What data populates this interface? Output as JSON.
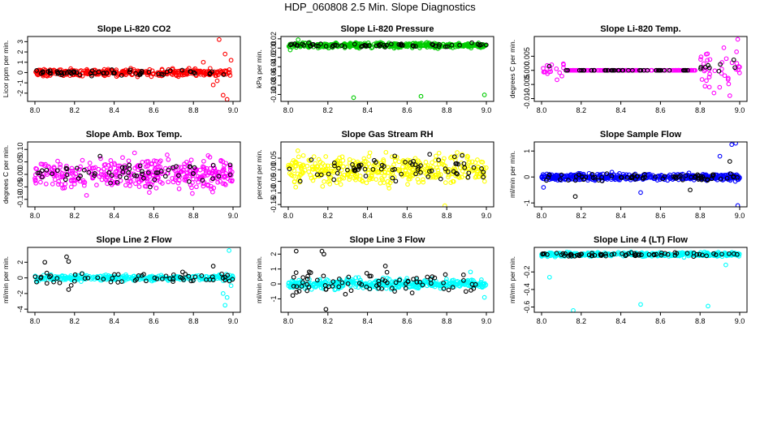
{
  "title": "HDP_060808  2.5 Min. Slope Diagnostics",
  "colors": {
    "co2": "#ff0000",
    "pressure": "#00cc00",
    "magenta": "#ff00ff",
    "yellow": "#ffff00",
    "blue": "#0000ff",
    "cyan": "#00ffff",
    "black": "#000000"
  },
  "chart_data": [
    {
      "type": "scatter",
      "title": "Slope Li-820 CO2",
      "ylabel": "Licor ppm per min.",
      "xlim": [
        8.0,
        9.0
      ],
      "ylim": [
        -2.8,
        3.5
      ],
      "yticks": [
        -2,
        -1,
        0,
        1,
        2,
        3
      ],
      "xticks": [
        8.0,
        8.2,
        8.4,
        8.6,
        8.8,
        9.0
      ],
      "color_key": "co2",
      "series": [
        {
          "name": "all",
          "color_key": "co2",
          "n": 340,
          "spread": 0.32,
          "events": [
            {
              "x": 8.85,
              "y": 1.0
            },
            {
              "x": 8.9,
              "y": -1.2
            },
            {
              "x": 8.93,
              "y": 3.2
            },
            {
              "x": 8.95,
              "y": -2.2
            },
            {
              "x": 8.97,
              "y": -2.6
            },
            {
              "x": 8.99,
              "y": 1.2
            },
            {
              "x": 8.96,
              "y": 1.8
            },
            {
              "x": 8.92,
              "y": -0.8
            }
          ]
        },
        {
          "name": "subset",
          "color_key": "black",
          "n": 60,
          "spread": 0.25,
          "events": []
        }
      ]
    },
    {
      "type": "scatter",
      "title": "Slope Li-820 Pressure",
      "ylabel": "kPa per min.",
      "xlim": [
        8.0,
        9.0
      ],
      "ylim": [
        -0.115,
        0.025
      ],
      "yticks": [
        -0.1,
        -0.08,
        -0.06,
        -0.04,
        -0.02,
        0.0,
        0.02
      ],
      "xticks": [
        8.0,
        8.2,
        8.4,
        8.6,
        8.8,
        9.0
      ],
      "center": 0.006,
      "color_key": "pressure",
      "series": [
        {
          "name": "all",
          "color_key": "pressure",
          "n": 420,
          "spread": 0.005,
          "events": [
            {
              "x": 8.33,
              "y": -0.107
            },
            {
              "x": 8.67,
              "y": -0.104
            },
            {
              "x": 8.99,
              "y": -0.101
            },
            {
              "x": 8.01,
              "y": -0.004
            },
            {
              "x": 8.05,
              "y": 0.018
            }
          ]
        },
        {
          "name": "subset",
          "color_key": "black",
          "n": 60,
          "spread": 0.004,
          "events": []
        }
      ]
    },
    {
      "type": "scatter",
      "title": "Slope Li-820 Temp.",
      "ylabel": "degrees C per min.",
      "xlim": [
        8.0,
        9.0
      ],
      "ylim": [
        -0.011,
        0.012
      ],
      "yticks": [
        -0.01,
        -0.005,
        0.0,
        0.005
      ],
      "xticks": [
        8.0,
        8.2,
        8.4,
        8.6,
        8.8,
        9.0
      ],
      "color_key": "magenta",
      "series": [
        {
          "name": "all",
          "color_key": "magenta",
          "n": 200,
          "spread": 0.0,
          "noisy_ranges": [
            [
              8.0,
              8.12,
              0.003
            ],
            [
              8.78,
              9.0,
              0.006
            ]
          ],
          "events": [
            {
              "x": 8.99,
              "y": 0.011
            },
            {
              "x": 8.87,
              "y": -0.008
            },
            {
              "x": 8.92,
              "y": 0.008
            },
            {
              "x": 8.95,
              "y": -0.009
            }
          ]
        },
        {
          "name": "subset",
          "color_key": "black",
          "n": 50,
          "spread": 0.0,
          "noisy_ranges": [
            [
              8.0,
              8.12,
              0.002
            ],
            [
              8.78,
              9.0,
              0.003
            ]
          ],
          "events": []
        }
      ]
    },
    {
      "type": "scatter",
      "title": "Slope Amb. Box Temp.",
      "ylabel": "degrees C per min.",
      "xlim": [
        8.0,
        9.0
      ],
      "ylim": [
        -0.13,
        0.13
      ],
      "yticks": [
        -0.1,
        -0.05,
        0.0,
        0.05,
        0.1
      ],
      "xticks": [
        8.0,
        8.2,
        8.4,
        8.6,
        8.8,
        9.0
      ],
      "color_key": "magenta",
      "series": [
        {
          "name": "all",
          "color_key": "magenta",
          "n": 380,
          "spread": 0.055,
          "events": []
        },
        {
          "name": "subset",
          "color_key": "black",
          "n": 60,
          "spread": 0.05,
          "events": []
        }
      ]
    },
    {
      "type": "scatter",
      "title": "Slope Gas Stream RH",
      "ylabel": "percent per min.",
      "xlim": [
        8.0,
        9.0
      ],
      "ylim": [
        -0.16,
        0.12
      ],
      "yticks": [
        -0.15,
        -0.1,
        -0.05,
        0.0,
        0.05
      ],
      "xticks": [
        8.0,
        8.2,
        8.4,
        8.6,
        8.8,
        9.0
      ],
      "color_key": "yellow",
      "series": [
        {
          "name": "all",
          "color_key": "yellow",
          "n": 420,
          "spread": 0.055,
          "events": [
            {
              "x": 8.79,
              "y": -0.155
            }
          ]
        },
        {
          "name": "subset",
          "color_key": "black",
          "n": 70,
          "spread": 0.05,
          "events": []
        }
      ]
    },
    {
      "type": "scatter",
      "title": "Slope Sample Flow",
      "ylabel": "ml/min per min.",
      "xlim": [
        8.0,
        9.0
      ],
      "ylim": [
        -1.15,
        1.35
      ],
      "yticks": [
        -1.0,
        0.0,
        1.0
      ],
      "xticks": [
        8.0,
        8.2,
        8.4,
        8.6,
        8.8,
        9.0
      ],
      "color_key": "blue",
      "series": [
        {
          "name": "all",
          "color_key": "blue",
          "n": 420,
          "spread": 0.12,
          "events": [
            {
              "x": 8.96,
              "y": 1.25
            },
            {
              "x": 8.98,
              "y": 1.3
            },
            {
              "x": 8.99,
              "y": -1.1
            },
            {
              "x": 8.5,
              "y": -0.6
            },
            {
              "x": 8.9,
              "y": 0.8
            },
            {
              "x": 8.01,
              "y": -0.4
            }
          ]
        },
        {
          "name": "subset",
          "color_key": "black",
          "n": 70,
          "spread": 0.12,
          "events": [
            {
              "x": 8.17,
              "y": -0.75
            },
            {
              "x": 8.75,
              "y": -0.5
            },
            {
              "x": 8.95,
              "y": 0.6
            }
          ]
        }
      ]
    },
    {
      "type": "scatter",
      "title": "Slope Line 2 Flow",
      "ylabel": "ml/min per min.",
      "xlim": [
        8.0,
        9.0
      ],
      "ylim": [
        -4.4,
        3.9
      ],
      "yticks": [
        -4,
        -2,
        0,
        2
      ],
      "xticks": [
        8.0,
        8.2,
        8.4,
        8.6,
        8.8,
        9.0
      ],
      "color_key": "cyan",
      "series": [
        {
          "name": "all",
          "color_key": "cyan",
          "n": 320,
          "spread": 0.35,
          "events": [
            {
              "x": 8.96,
              "y": -3.5
            },
            {
              "x": 8.97,
              "y": -2.5
            },
            {
              "x": 8.98,
              "y": 3.5
            },
            {
              "x": 8.99,
              "y": -1.0
            },
            {
              "x": 8.95,
              "y": -2.0
            }
          ]
        },
        {
          "name": "subset",
          "color_key": "black",
          "n": 60,
          "spread": 0.7,
          "events": [
            {
              "x": 8.05,
              "y": 2.0
            },
            {
              "x": 8.16,
              "y": 2.7
            },
            {
              "x": 8.17,
              "y": 2.1
            },
            {
              "x": 8.17,
              "y": -1.5
            },
            {
              "x": 8.9,
              "y": 1.5
            }
          ]
        }
      ]
    },
    {
      "type": "scatter",
      "title": "Slope Line 3 Flow",
      "ylabel": "ml/min per min.",
      "xlim": [
        8.0,
        9.0
      ],
      "ylim": [
        -1.9,
        2.45
      ],
      "yticks": [
        -1,
        0,
        1,
        2
      ],
      "xticks": [
        8.0,
        8.2,
        8.4,
        8.6,
        8.8,
        9.0
      ],
      "color_key": "cyan",
      "series": [
        {
          "name": "all",
          "color_key": "cyan",
          "n": 400,
          "spread": 0.3,
          "events": [
            {
              "x": 8.92,
              "y": 0.8
            },
            {
              "x": 8.99,
              "y": -0.9
            }
          ]
        },
        {
          "name": "subset",
          "color_key": "black",
          "n": 80,
          "spread": 0.75,
          "events": [
            {
              "x": 8.04,
              "y": 2.2
            },
            {
              "x": 8.17,
              "y": 2.2
            },
            {
              "x": 8.18,
              "y": 2.0
            },
            {
              "x": 8.19,
              "y": -1.7
            },
            {
              "x": 8.49,
              "y": 1.2
            }
          ]
        }
      ]
    },
    {
      "type": "scatter",
      "title": "Slope Line 4 (LT) Flow",
      "ylabel": "ml/min per min.",
      "xlim": [
        8.0,
        9.0
      ],
      "ylim": [
        -0.66,
        0.08
      ],
      "yticks": [
        -0.6,
        -0.4,
        -0.2
      ],
      "xticks": [
        8.0,
        8.2,
        8.4,
        8.6,
        8.8,
        9.0
      ],
      "center": 0.0,
      "color_key": "cyan",
      "series": [
        {
          "name": "all",
          "color_key": "cyan",
          "n": 380,
          "spread": 0.022,
          "events": [
            {
              "x": 8.04,
              "y": -0.26
            },
            {
              "x": 8.16,
              "y": -0.64
            },
            {
              "x": 8.5,
              "y": -0.57
            },
            {
              "x": 8.84,
              "y": -0.59
            },
            {
              "x": 8.93,
              "y": -0.12
            }
          ]
        },
        {
          "name": "subset",
          "color_key": "black",
          "n": 70,
          "spread": 0.02,
          "events": []
        }
      ]
    }
  ]
}
